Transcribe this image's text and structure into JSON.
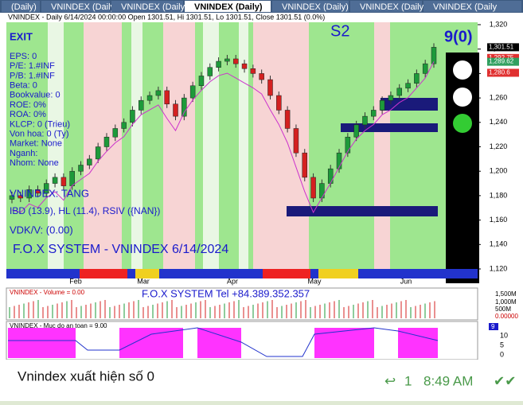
{
  "tabs": [
    "(Daily)",
    "VNINDEX (Daily)",
    "VNINDEX (Daily)",
    "VNINDEX (Daily)",
    "VNINDEX (Daily)",
    "VNINDEX (Daily)",
    "VNINDEX (Daily"
  ],
  "header": "VNINDEX - Daily 6/14/2024 00:00:00 Open 1301.51, Hi 1301.51, Lo 1301.51, Close 1301.51 (0.0%)",
  "info": {
    "exit": "EXIT",
    "lines": [
      "EPS: 0",
      "P/E: 1.#INF",
      "P/B: 1.#INF",
      "Beta: 0",
      "Bookvalue: 0",
      "ROE: 0%",
      "ROA: 0%",
      "KLCP: 0 (Trieu)",
      "Von hoa: 0 (Ty)",
      "Market: None",
      "Nganh:",
      "Nhom: None"
    ],
    "trend": "VNINDEX: TANG",
    "ibd": "IBD (13.9), HL (11.4), RSIV ({NAN})",
    "vdk": "VDK/V:  (0.00)",
    "system": "F.O.X SYSTEM - VNINDEX 6/14/2024",
    "signal": "S2",
    "count": "9(0)"
  },
  "price_axis": {
    "lim": [
      1120,
      1320
    ],
    "ticks": [
      {
        "value": 1320,
        "label": "1,320"
      },
      {
        "value": 1300,
        "label": "1,300"
      },
      {
        "value": 1280,
        "label": "1,280"
      },
      {
        "value": 1260,
        "label": "1,260"
      },
      {
        "value": 1240,
        "label": "1,240"
      },
      {
        "value": 1220,
        "label": "1,220"
      },
      {
        "value": 1200,
        "label": "1,200"
      },
      {
        "value": 1180,
        "label": "1,180"
      },
      {
        "value": 1160,
        "label": "1,160"
      },
      {
        "value": 1140,
        "label": "1,140"
      },
      {
        "value": 1120,
        "label": "1,120"
      }
    ],
    "markers": [
      {
        "value": 1301.51,
        "label": "1,301.51",
        "color": "#000000"
      },
      {
        "value": 1292.75,
        "label": "1,292.75",
        "color": "#e03030"
      },
      {
        "value": 1289.62,
        "label": "1,289.62",
        "color": "#30a060"
      },
      {
        "value": 1280.6,
        "label": "1,280.6",
        "color": "#e03030"
      }
    ]
  },
  "closes": [
    1180,
    1178,
    1185,
    1182,
    1190,
    1195,
    1188,
    1200,
    1205,
    1210,
    1220,
    1228,
    1235,
    1240,
    1250,
    1258,
    1262,
    1266,
    1255,
    1245,
    1260,
    1270,
    1278,
    1285,
    1290,
    1292,
    1288,
    1284,
    1280,
    1275,
    1262,
    1250,
    1235,
    1215,
    1195,
    1178,
    1190,
    1202,
    1215,
    1228,
    1238,
    1245,
    1250,
    1258,
    1262,
    1268,
    1272,
    1280,
    1288,
    1301.51
  ],
  "months": [
    "Feb",
    "Mar",
    "Apr",
    "May",
    "Jun"
  ],
  "volume": {
    "title": "VNINDEX - Volume = 0.00",
    "tel": "F.O.X SYSTEM Tel +84.389.352.357",
    "axis": [
      "1,500M",
      "1,000M",
      "500M",
      "0.00000"
    ]
  },
  "safety": {
    "title": "VNINDEX - Muc do an toan = 9.00",
    "axis": [
      "10",
      "5",
      "0"
    ],
    "tag": "9"
  },
  "message": {
    "text": "Vnindex xuất hiện số 0",
    "replies": "1",
    "time": "8:49 AM"
  }
}
